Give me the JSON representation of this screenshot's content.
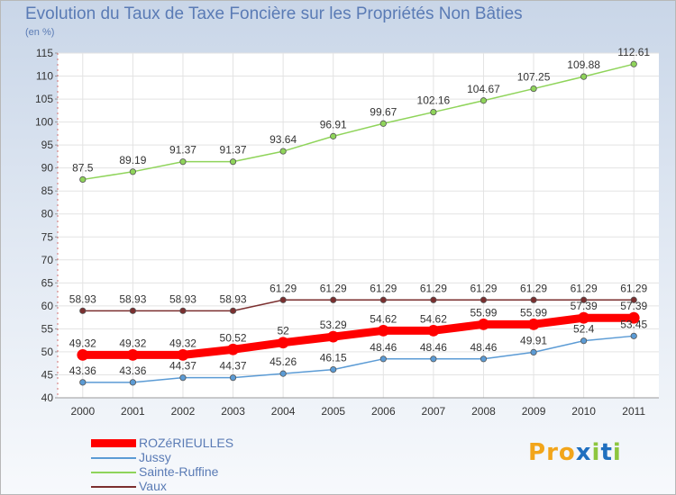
{
  "chart_data": {
    "type": "line",
    "title": "Evolution du Taux de Taxe Foncière sur les Propriétés Non Bâties",
    "unit_label": "(en %)",
    "x": [
      "2000",
      "2001",
      "2002",
      "2003",
      "2004",
      "2005",
      "2006",
      "2007",
      "2008",
      "2009",
      "2010",
      "2011"
    ],
    "ylim": [
      40,
      115
    ],
    "yticks": [
      40,
      45,
      50,
      55,
      60,
      65,
      70,
      75,
      80,
      85,
      90,
      95,
      100,
      105,
      110,
      115
    ],
    "grid": true,
    "legend_position": "bottom-left",
    "series": [
      {
        "name": "ROZéRIEULLES",
        "color": "#ff0000",
        "values": [
          49.32,
          49.32,
          49.32,
          50.52,
          52,
          53.29,
          54.62,
          54.62,
          55.99,
          55.99,
          57.39,
          57.39
        ],
        "labels": [
          "49.32",
          "49.32",
          "49.32",
          "50.52",
          "52",
          "53.29",
          "54.62",
          "54.62",
          "55.99",
          "55.99",
          "57.39",
          "57.39"
        ]
      },
      {
        "name": "Jussy",
        "color": "#5b9bd5",
        "values": [
          43.36,
          43.36,
          44.37,
          44.37,
          45.26,
          46.15,
          48.46,
          48.46,
          48.46,
          49.91,
          52.4,
          53.45
        ],
        "labels": [
          "43.36",
          "43.36",
          "44.37",
          "44.37",
          "45.26",
          "46.15",
          "48.46",
          "48.46",
          "48.46",
          "49.91",
          "52.4",
          "53.45"
        ]
      },
      {
        "name": "Sainte-Ruffine",
        "color": "#8fd45a",
        "values": [
          87.5,
          89.19,
          91.37,
          91.37,
          93.64,
          96.91,
          99.67,
          102.16,
          104.67,
          107.25,
          109.88,
          112.61
        ],
        "labels": [
          "87.5",
          "89.19",
          "91.37",
          "91.37",
          "93.64",
          "96.91",
          "99.67",
          "102.16",
          "104.67",
          "107.25",
          "109.88",
          "112.61"
        ]
      },
      {
        "name": "Vaux",
        "color": "#7b2f2f",
        "values": [
          58.93,
          58.93,
          58.93,
          58.93,
          61.29,
          61.29,
          61.29,
          61.29,
          61.29,
          61.29,
          61.29,
          61.29
        ],
        "labels": [
          "58.93",
          "58.93",
          "58.93",
          "58.93",
          "61.29",
          "61.29",
          "61.29",
          "61.29",
          "61.29",
          "61.29",
          "61.29",
          "61.29"
        ]
      }
    ]
  },
  "logo": {
    "text": "Proxiti",
    "colors": [
      "#f2a51a",
      "#f2a51a",
      "#f2a51a",
      "#1f6fbf",
      "#8dc63f",
      "#1f6fbf",
      "#8dc63f"
    ]
  }
}
